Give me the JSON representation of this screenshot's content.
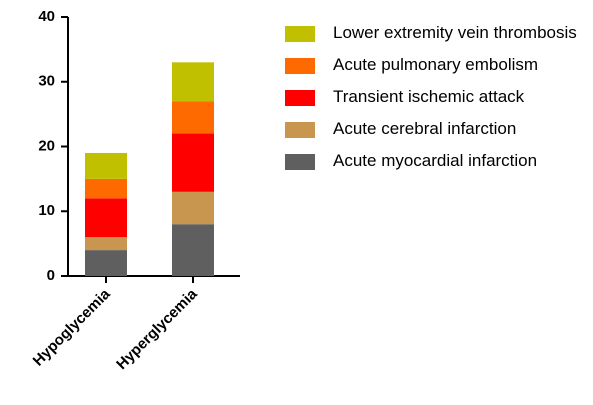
{
  "chart_data": {
    "type": "stacked_bar",
    "categories": [
      "Hypoglycemia",
      "Hyperglycemia"
    ],
    "series": [
      {
        "name": "Acute myocardial infarction",
        "color": "#5f5f5f",
        "values": [
          4,
          8
        ]
      },
      {
        "name": "Acute cerebral infarction",
        "color": "#c8964e",
        "values": [
          2,
          5
        ]
      },
      {
        "name": "Transient ischemic attack",
        "color": "#ff0000",
        "values": [
          6,
          9
        ]
      },
      {
        "name": "Acute pulmonary embolism",
        "color": "#ff6a00",
        "values": [
          3,
          5
        ]
      },
      {
        "name": "Lower extremity vein thrombosis",
        "color": "#c0c000",
        "values": [
          4,
          6
        ]
      }
    ],
    "ylim": [
      0,
      40
    ],
    "yticks": [
      0,
      10,
      20,
      30,
      40
    ],
    "grid": false,
    "legend": "right"
  }
}
